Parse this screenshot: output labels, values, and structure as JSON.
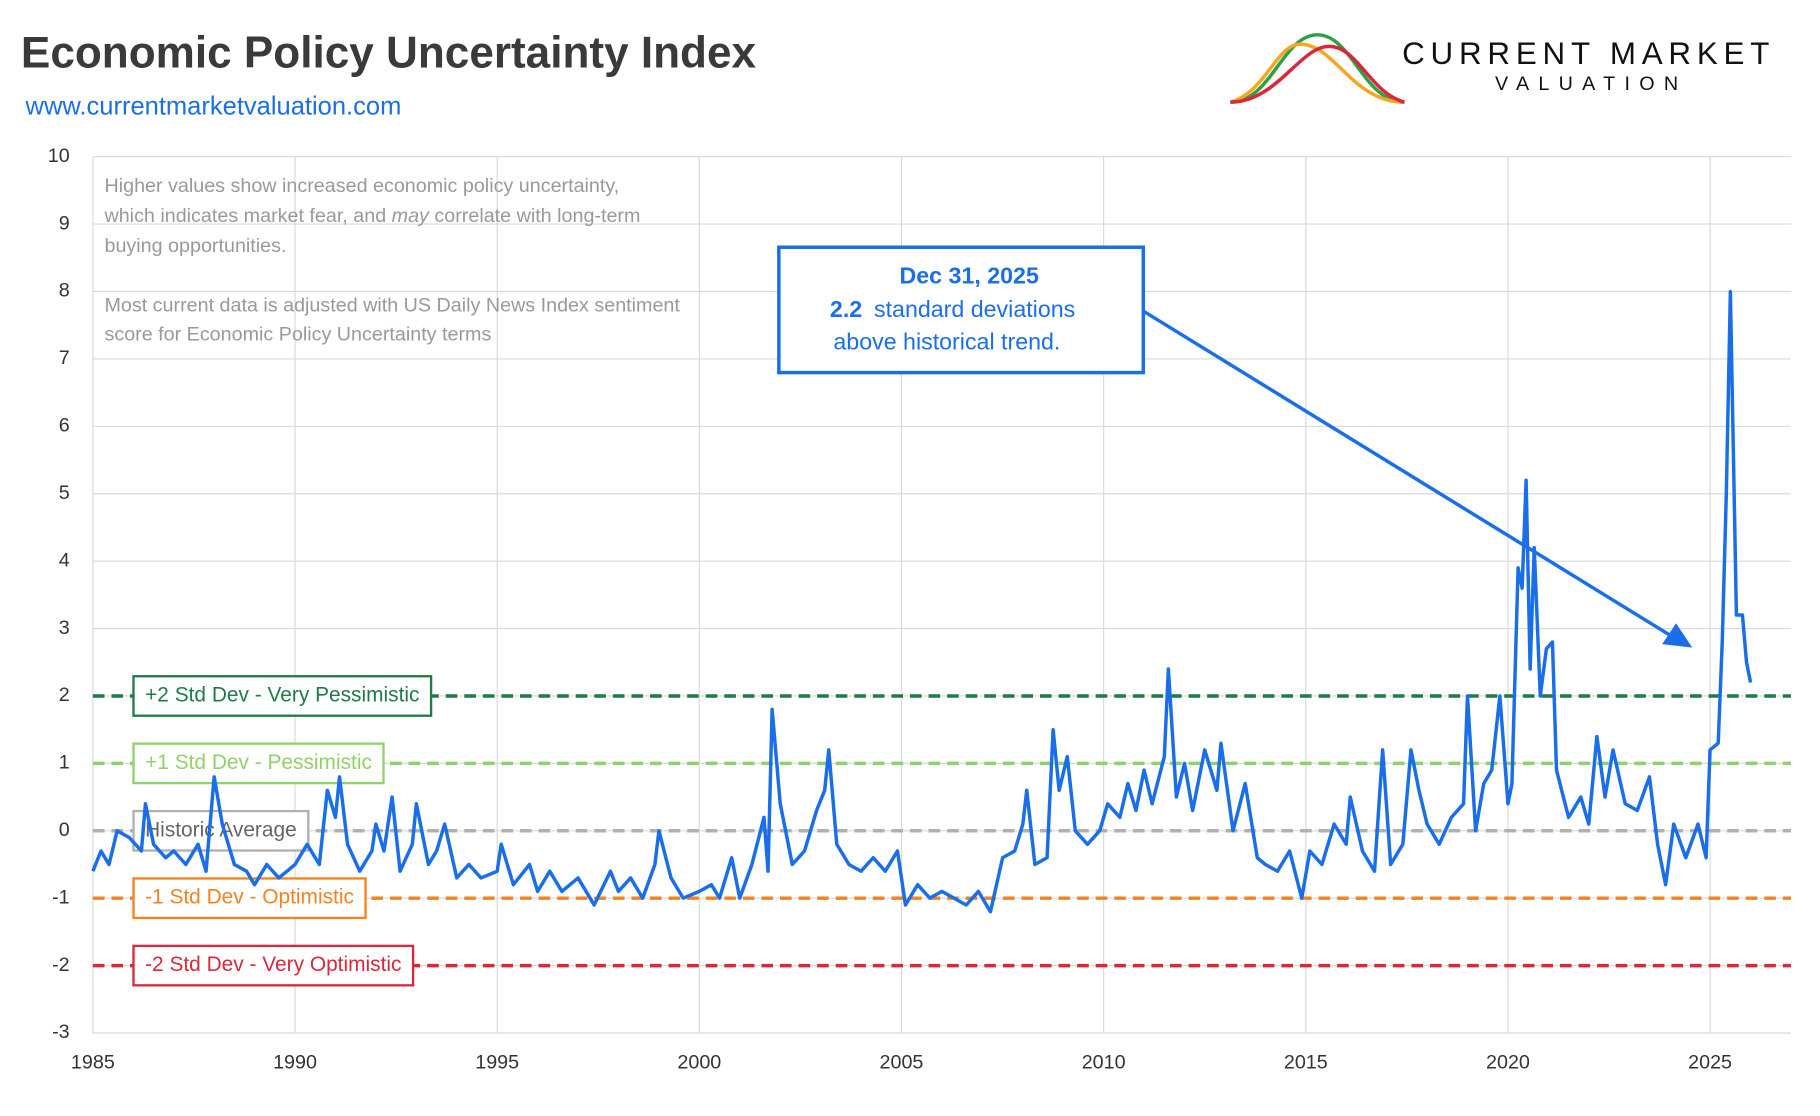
{
  "chart_data": {
    "type": "line",
    "title": "Economic Policy Uncertainty Index",
    "subtitle": "www.currentmarketvaluation.com",
    "brand": [
      "CURRENT MARKET",
      "VALUATION"
    ],
    "note": [
      [
        "Higher values show increased economic policy uncertainty,"
      ],
      [
        "which indicates market fear, and ",
        "may",
        " correlate with long-term"
      ],
      [
        "buying opportunities."
      ],
      [
        "Most current data is adjusted with US Daily News Index sentiment"
      ],
      [
        "score for Economic Policy Uncertainty terms"
      ]
    ],
    "callout": {
      "date": "Dec 31, 2025",
      "value": 2.2,
      "line2": "standard deviations",
      "line3": "above  historical trend."
    },
    "xlim": [
      1985,
      2027
    ],
    "xticks": [
      1985,
      1990,
      1995,
      2000,
      2005,
      2010,
      2015,
      2020,
      2025
    ],
    "ylim": [
      -3,
      10
    ],
    "yticks": [
      -3,
      -2,
      -1,
      0,
      1,
      2,
      3,
      4,
      5,
      6,
      7,
      8,
      9,
      10
    ],
    "grid": true,
    "reference_lines": [
      {
        "value": 2,
        "label": "+2 Std Dev - Very Pessimistic",
        "color": "#1e7b45"
      },
      {
        "value": 1,
        "label": "+1 Std Dev - Pessimistic",
        "color": "#8fd16a"
      },
      {
        "value": 0,
        "label": "Historic Average",
        "color": "#b0b0b0"
      },
      {
        "value": -1,
        "label": "-1 Std Dev - Optimistic",
        "color": "#f5821f"
      },
      {
        "value": -2,
        "label": "-2 Std Dev - Very Optimistic",
        "color": "#d8283c"
      }
    ],
    "x": [
      1985.0,
      1985.2,
      1985.4,
      1985.6,
      1985.9,
      1986.2,
      1986.3,
      1986.5,
      1986.8,
      1987.0,
      1987.3,
      1987.6,
      1987.8,
      1988.0,
      1988.2,
      1988.5,
      1988.8,
      1989.0,
      1989.3,
      1989.6,
      1990.0,
      1990.3,
      1990.6,
      1990.8,
      1991.0,
      1991.1,
      1991.3,
      1991.6,
      1991.9,
      1992.0,
      1992.2,
      1992.4,
      1992.6,
      1992.9,
      1993.0,
      1993.3,
      1993.5,
      1993.7,
      1994.0,
      1994.3,
      1994.6,
      1995.0,
      1995.1,
      1995.4,
      1995.8,
      1996.0,
      1996.3,
      1996.6,
      1997.0,
      1997.4,
      1997.8,
      1998.0,
      1998.3,
      1998.6,
      1998.9,
      1999.0,
      1999.3,
      1999.6,
      2000.0,
      2000.3,
      2000.5,
      2000.8,
      2001.0,
      2001.3,
      2001.6,
      2001.7,
      2001.8,
      2002.0,
      2002.3,
      2002.6,
      2002.9,
      2003.1,
      2003.2,
      2003.4,
      2003.7,
      2004.0,
      2004.3,
      2004.6,
      2004.9,
      2005.1,
      2005.4,
      2005.7,
      2006.0,
      2006.3,
      2006.6,
      2006.9,
      2007.2,
      2007.5,
      2007.8,
      2008.0,
      2008.1,
      2008.3,
      2008.6,
      2008.75,
      2008.9,
      2009.1,
      2009.3,
      2009.6,
      2009.9,
      2010.1,
      2010.4,
      2010.6,
      2010.8,
      2011.0,
      2011.2,
      2011.5,
      2011.6,
      2011.8,
      2012.0,
      2012.2,
      2012.5,
      2012.8,
      2012.9,
      2013.2,
      2013.5,
      2013.8,
      2014.0,
      2014.3,
      2014.6,
      2014.9,
      2015.1,
      2015.4,
      2015.7,
      2016.0,
      2016.1,
      2016.4,
      2016.7,
      2016.9,
      2017.1,
      2017.4,
      2017.6,
      2017.8,
      2018.0,
      2018.3,
      2018.6,
      2018.9,
      2019.0,
      2019.2,
      2019.4,
      2019.6,
      2019.8,
      2020.0,
      2020.1,
      2020.25,
      2020.35,
      2020.45,
      2020.55,
      2020.65,
      2020.8,
      2020.95,
      2021.1,
      2021.2,
      2021.5,
      2021.8,
      2022.0,
      2022.2,
      2022.4,
      2022.6,
      2022.9,
      2023.2,
      2023.5,
      2023.7,
      2023.9,
      2024.1,
      2024.4,
      2024.7,
      2024.9,
      2025.0,
      2025.2,
      2025.3,
      2025.4,
      2025.5,
      2025.65,
      2025.8,
      2025.9,
      2026.0
    ],
    "series": [
      {
        "color": "#1a6fe8",
        "values": [
          -0.6,
          -0.3,
          -0.5,
          0.0,
          -0.1,
          -0.3,
          0.4,
          -0.2,
          -0.4,
          -0.3,
          -0.5,
          -0.2,
          -0.6,
          0.8,
          0.1,
          -0.5,
          -0.6,
          -0.8,
          -0.5,
          -0.7,
          -0.5,
          -0.2,
          -0.5,
          0.6,
          0.2,
          0.8,
          -0.2,
          -0.6,
          -0.3,
          0.1,
          -0.3,
          0.5,
          -0.6,
          -0.2,
          0.4,
          -0.5,
          -0.3,
          0.1,
          -0.7,
          -0.5,
          -0.7,
          -0.6,
          -0.2,
          -0.8,
          -0.5,
          -0.9,
          -0.6,
          -0.9,
          -0.7,
          -1.1,
          -0.6,
          -0.9,
          -0.7,
          -1.0,
          -0.5,
          0.0,
          -0.7,
          -1.0,
          -0.9,
          -0.8,
          -1.0,
          -0.4,
          -1.0,
          -0.5,
          0.2,
          -0.6,
          1.8,
          0.4,
          -0.5,
          -0.3,
          0.3,
          0.6,
          1.2,
          -0.2,
          -0.5,
          -0.6,
          -0.4,
          -0.6,
          -0.3,
          -1.1,
          -0.8,
          -1.0,
          -0.9,
          -1.0,
          -1.1,
          -0.9,
          -1.2,
          -0.4,
          -0.3,
          0.1,
          0.6,
          -0.5,
          -0.4,
          1.5,
          0.6,
          1.1,
          0.0,
          -0.2,
          0.0,
          0.4,
          0.2,
          0.7,
          0.3,
          0.9,
          0.4,
          1.1,
          2.4,
          0.5,
          1.0,
          0.3,
          1.2,
          0.6,
          1.3,
          0.0,
          0.7,
          -0.4,
          -0.5,
          -0.6,
          -0.3,
          -1.0,
          -0.3,
          -0.5,
          0.1,
          -0.2,
          0.5,
          -0.3,
          -0.6,
          1.2,
          -0.5,
          -0.2,
          1.2,
          0.6,
          0.1,
          -0.2,
          0.2,
          0.4,
          2.0,
          0.0,
          0.7,
          0.9,
          2.0,
          0.4,
          0.7,
          3.9,
          3.6,
          5.2,
          2.4,
          4.2,
          2.0,
          2.7,
          2.8,
          0.9,
          0.2,
          0.5,
          0.1,
          1.4,
          0.5,
          1.2,
          0.4,
          0.3,
          0.8,
          -0.2,
          -0.8,
          0.1,
          -0.4,
          0.1,
          -0.4,
          1.2,
          1.3,
          2.8,
          5.0,
          8.0,
          3.2,
          3.2,
          2.5,
          2.2
        ]
      }
    ]
  }
}
